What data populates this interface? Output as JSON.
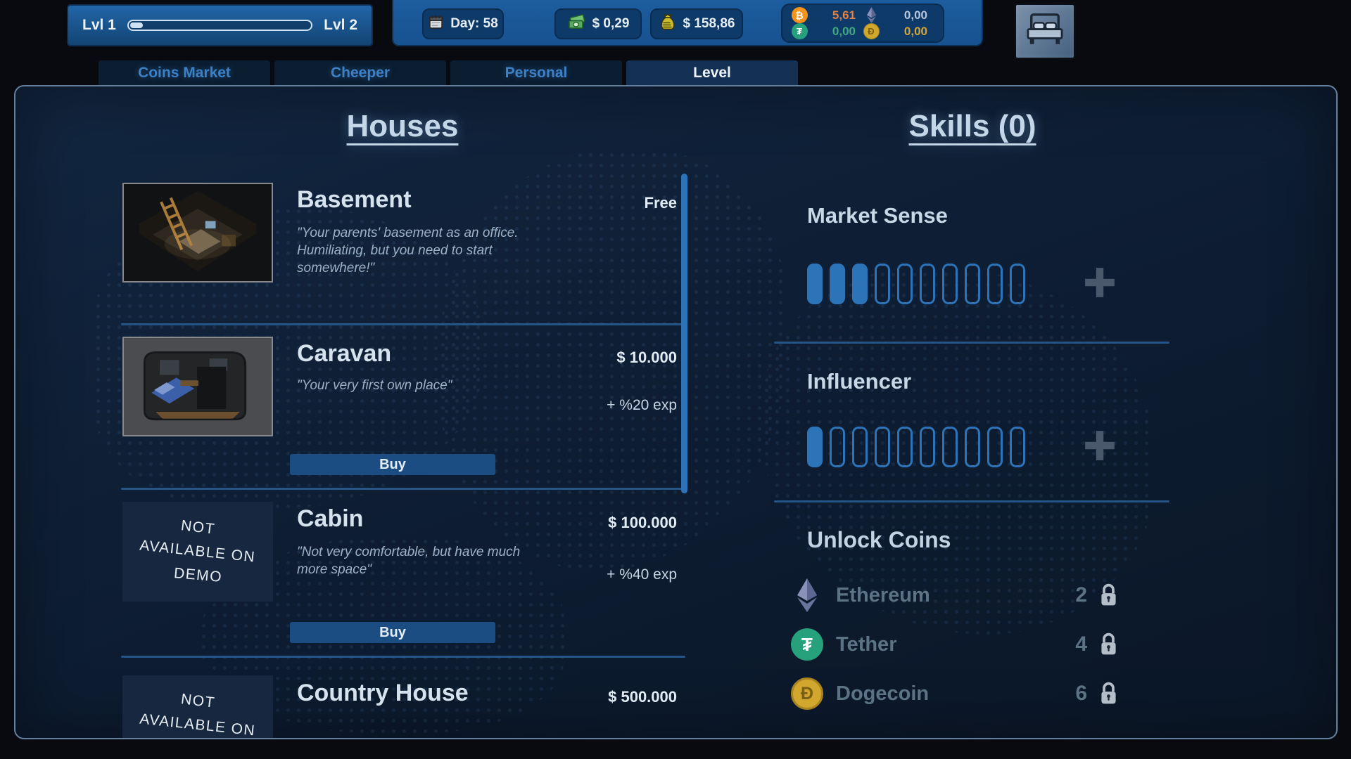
{
  "top_bar": {
    "level": {
      "current_label": "Lvl 1",
      "next_label": "Lvl 2",
      "progress_percent": 7
    },
    "day_label": "Day: 58",
    "cash_label": "$ 0,29",
    "bank_label": "$ 158,86",
    "wallet": [
      {
        "coin": "bitcoin",
        "amount": "5,61"
      },
      {
        "coin": "ethereum",
        "amount": "0,00"
      },
      {
        "coin": "tether",
        "amount": "0,00"
      },
      {
        "coin": "dogecoin",
        "amount": "0,00"
      }
    ]
  },
  "tabs": [
    {
      "label": "Coins Market",
      "active": false
    },
    {
      "label": "Cheeper",
      "active": false
    },
    {
      "label": "Personal",
      "active": false
    },
    {
      "label": "Level",
      "active": true
    }
  ],
  "houses": {
    "title": "Houses",
    "buy_label": "Buy",
    "not_available_lines": [
      "NOT",
      "AVAILABLE ON",
      "DEMO"
    ],
    "items": [
      {
        "name": "Basement",
        "price": "Free",
        "description": "\"Your parents' basement as an office. Humiliating, but you need to start somewhere!\""
      },
      {
        "name": "Caravan",
        "price": "$ 10.000",
        "description": "\"Your very first own place\"",
        "exp_bonus": "+ %20 exp"
      },
      {
        "name": "Cabin",
        "price": "$ 100.000",
        "description": "\"Not very comfortable, but have much more space\"",
        "exp_bonus": "+ %40 exp"
      },
      {
        "name": "Country House",
        "price": "$ 500.000"
      }
    ]
  },
  "skills": {
    "title": "Skills (0)",
    "items": [
      {
        "name": "Market Sense",
        "level": 3,
        "max": 10
      },
      {
        "name": "Influencer",
        "level": 1,
        "max": 10
      }
    ],
    "unlock_coins": {
      "title": "Unlock Coins",
      "rows": [
        {
          "coin": "Ethereum",
          "unlock_level": "2"
        },
        {
          "coin": "Tether",
          "unlock_level": "4"
        },
        {
          "coin": "Dogecoin",
          "unlock_level": "6"
        }
      ]
    }
  },
  "colors": {
    "accent_blue": "#2d73b7",
    "btc": "#e08146",
    "eth_amount": "#b9c6da",
    "usdt": "#41aa7e",
    "doge_amount": "#d8a630",
    "tab_text": "#3d80c6",
    "buy_button": "#1b4c82"
  }
}
